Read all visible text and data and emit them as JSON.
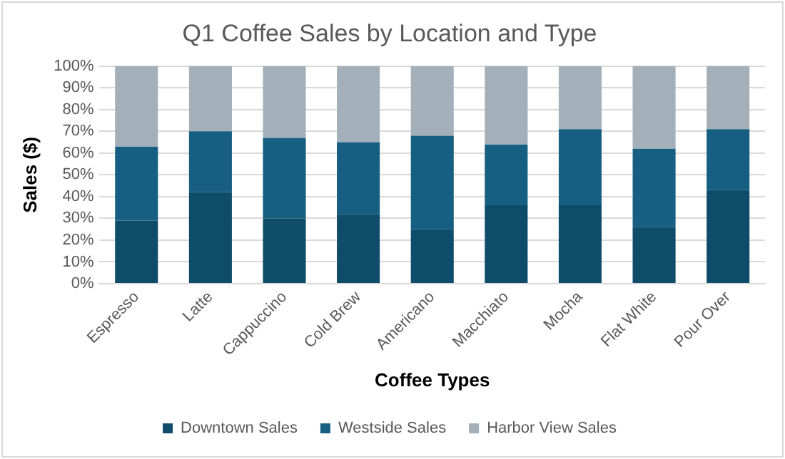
{
  "chart_data": {
    "type": "bar",
    "title": "Q1 Coffee Sales by Location and Type",
    "xlabel": "Coffee Types",
    "ylabel": "Sales ($)",
    "categories": [
      "Espresso",
      "Latte",
      "Cappuccino",
      "Cold Brew",
      "Americano",
      "Macchiato",
      "Mocha",
      "Flat White",
      "Pour Over"
    ],
    "series": [
      {
        "name": "Downtown Sales",
        "color": "#0f4c6a",
        "values": [
          29,
          42,
          30,
          32,
          25,
          36,
          36,
          26,
          43
        ]
      },
      {
        "name": "Westside Sales",
        "color": "#165f82",
        "values": [
          34,
          28,
          37,
          33,
          43,
          28,
          35,
          36,
          28
        ]
      },
      {
        "name": "Harbor View Sales",
        "color": "#a3b0ba",
        "values": [
          37,
          30,
          33,
          35,
          32,
          36,
          29,
          38,
          29
        ]
      }
    ],
    "stacked": true,
    "ylim": [
      0,
      100
    ],
    "yticks": [
      {
        "value": 0,
        "label": "0%"
      },
      {
        "value": 10,
        "label": "10%"
      },
      {
        "value": 20,
        "label": "20%"
      },
      {
        "value": 30,
        "label": "30%"
      },
      {
        "value": 40,
        "label": "40%"
      },
      {
        "value": 50,
        "label": "50%"
      },
      {
        "value": 60,
        "label": "60%"
      },
      {
        "value": 70,
        "label": "70%"
      },
      {
        "value": 80,
        "label": "80%"
      },
      {
        "value": 90,
        "label": "90%"
      },
      {
        "value": 100,
        "label": "100%"
      }
    ],
    "grid": "y",
    "legend": "bottom"
  }
}
